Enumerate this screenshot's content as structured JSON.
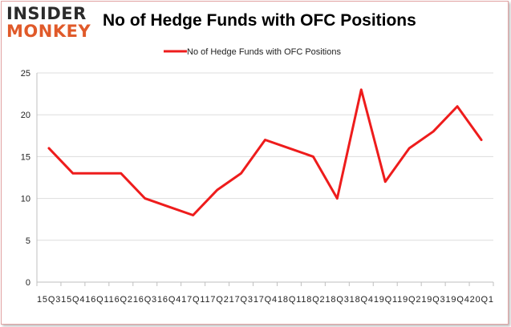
{
  "logo": {
    "line1": "INSIDER",
    "line2": "MONKEY"
  },
  "colors": {
    "series": "#ee1c1c",
    "axis": "#bfbfbf",
    "grid": "#dddddd",
    "frame": "#e2a3a3"
  },
  "chart_data": {
    "type": "line",
    "title": "No of Hedge Funds with OFC Positions",
    "xlabel": "",
    "ylabel": "",
    "ylim": [
      0,
      25
    ],
    "yticks": [
      0,
      5,
      10,
      15,
      20,
      25
    ],
    "grid": "horizontal",
    "legend_position": "top-center",
    "categories": [
      "2015Q3",
      "2015Q4",
      "2016Q1",
      "2016Q2",
      "2016Q3",
      "2016Q4",
      "2017Q1",
      "2017Q2",
      "2017Q3",
      "2017Q4",
      "2018Q1",
      "2018Q2",
      "2018Q3",
      "2018Q4",
      "2019Q1",
      "2019Q2",
      "2019Q3",
      "2019Q4",
      "2020Q1"
    ],
    "x_tick_text": "15Q315Q416Q116Q216Q316Q417Q117Q217Q317Q418Q118Q218Q318Q419Q119Q219Q319Q420Q1",
    "series": [
      {
        "name": "No of Hedge Funds with OFC Positions",
        "values": [
          16,
          13,
          13,
          13,
          10,
          9,
          8,
          11,
          13,
          17,
          16,
          15,
          10,
          23,
          12,
          16,
          18,
          21,
          17
        ]
      }
    ]
  }
}
